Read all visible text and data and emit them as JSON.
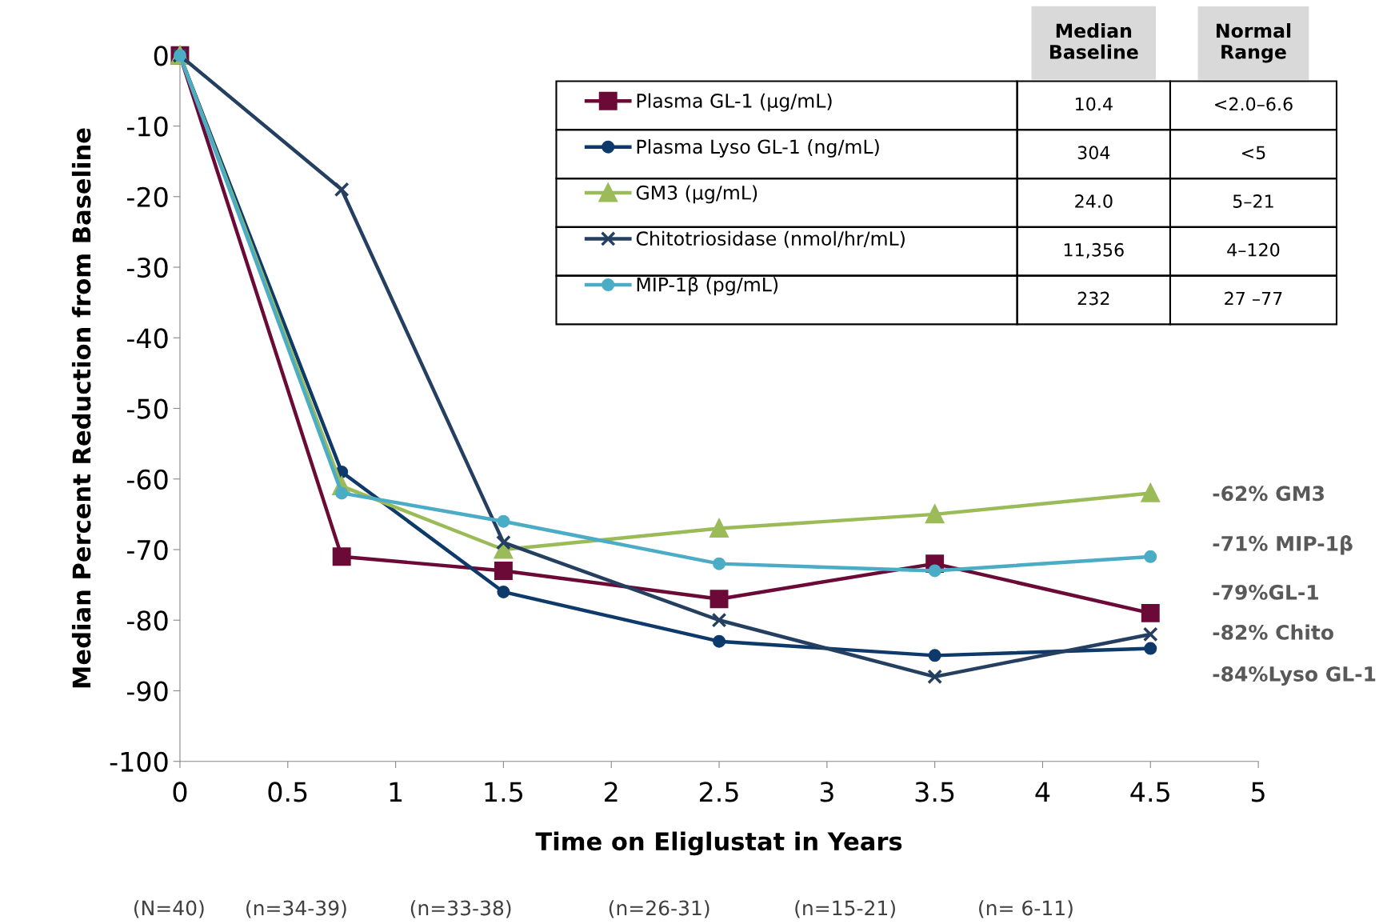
{
  "chart_data": {
    "type": "line",
    "xlabel": "Time on Eliglustat in Years",
    "ylabel": "Median Percent Reduction from Baseline",
    "x": [
      0,
      0.75,
      1.5,
      2.5,
      3.5,
      4.5
    ],
    "xlim": [
      0,
      5
    ],
    "xticks": [
      0,
      0.5,
      1,
      1.5,
      2,
      2.5,
      3,
      3.5,
      4,
      4.5,
      5
    ],
    "ylim": [
      -100,
      0
    ],
    "yticks": [
      -100,
      -90,
      -80,
      -70,
      -60,
      -50,
      -40,
      -30,
      -20,
      -10,
      0
    ],
    "grid": false,
    "legend": "top right",
    "series": [
      {
        "name": "Plasma GL-1 (µg/mL)",
        "color": "#6b0a36",
        "marker": "square",
        "values": [
          0,
          -71,
          -73,
          -77,
          -72,
          -79
        ]
      },
      {
        "name": "Plasma Lyso GL-1 (ng/mL)",
        "color": "#0d3a6b",
        "marker": "circle",
        "values": [
          0,
          -59,
          -76,
          -83,
          -85,
          -84
        ]
      },
      {
        "name": "GM3 (µg/mL)",
        "color": "#9bbb59",
        "marker": "triangle",
        "values": [
          0,
          -61,
          -70,
          -67,
          -65,
          -62
        ]
      },
      {
        "name": "Chitotriosidase (nmol/hr/mL)",
        "color": "#243f60",
        "marker": "cross",
        "values": [
          0,
          -19,
          -69,
          -80,
          -88,
          -82
        ]
      },
      {
        "name": "MIP-1β (pg/mL)",
        "color": "#4bacc6",
        "marker": "circle",
        "values": [
          0,
          -62,
          -66,
          -72,
          -73,
          -71
        ]
      }
    ],
    "annotations": [
      "-62% GM3",
      "-71% MIP-1β",
      "-79%GL-1",
      "-82% Chito",
      "-84%Lyso GL-1",
      "Median\nBaseline",
      "Normal\nRange",
      "10.4",
      "<2.0–6.6",
      "304",
      "<5",
      "24.0",
      "5–21",
      "11,356",
      "4–120",
      "232",
      "27 –77",
      "(N=40)",
      "(n=34-39)",
      "(n=33-38)",
      "(n=26-31)",
      "(n=15-21)",
      "(n= 6-11)"
    ]
  }
}
